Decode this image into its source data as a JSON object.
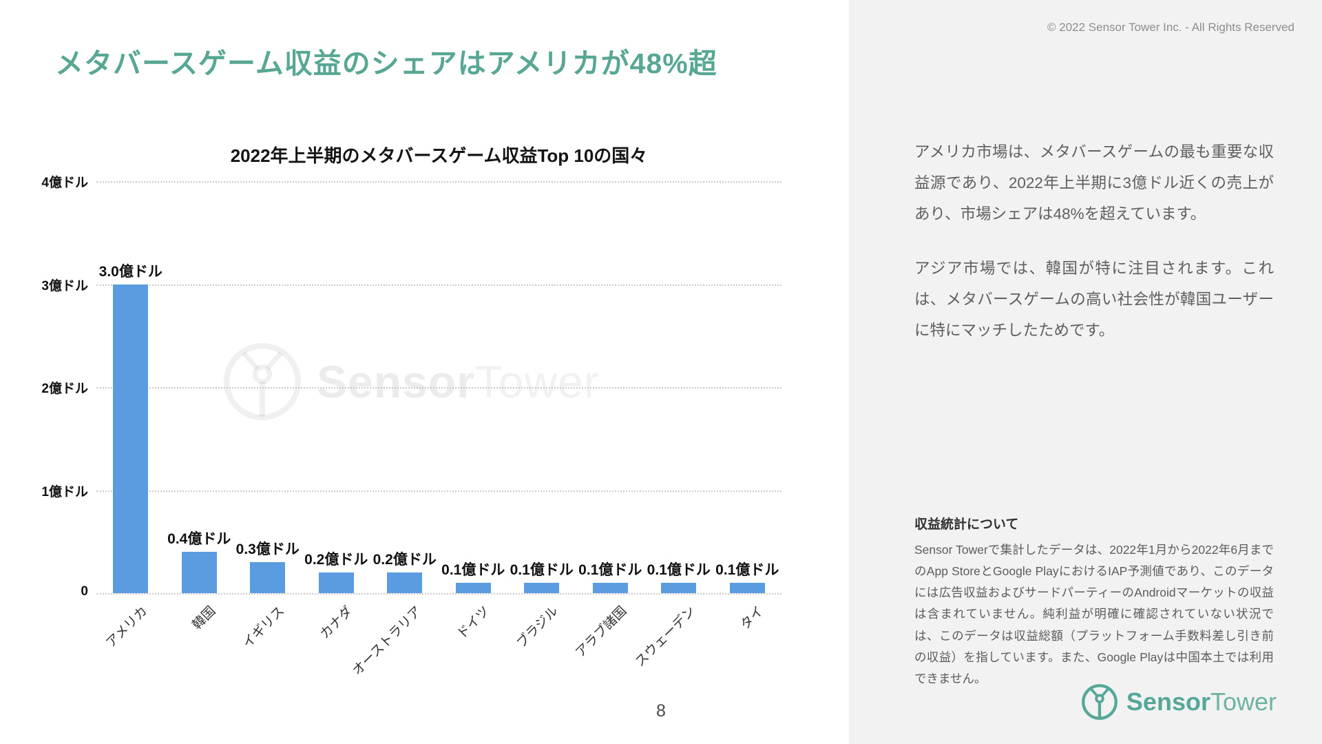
{
  "page": {
    "number": "8",
    "copyright": "© 2022 Sensor Tower Inc. - All Rights Reserved"
  },
  "slide_title": "メタバースゲーム収益のシェアはアメリカが48%超",
  "chart_data": {
    "type": "bar",
    "title": "2022年上半期のメタバースゲーム収益Top 10の国々",
    "categories": [
      "アメリカ",
      "韓国",
      "イギリス",
      "カナダ",
      "オーストラリア",
      "ドイツ",
      "ブラジル",
      "アラブ諸国",
      "スウェーデン",
      "タイ"
    ],
    "values": [
      3.0,
      0.4,
      0.3,
      0.2,
      0.2,
      0.1,
      0.1,
      0.1,
      0.1,
      0.1
    ],
    "value_labels": [
      "3.0億ドル",
      "0.4億ドル",
      "0.3億ドル",
      "0.2億ドル",
      "0.2億ドル",
      "0.1億ドル",
      "0.1億ドル",
      "0.1億ドル",
      "0.1億ドル",
      "0.1億ドル"
    ],
    "unit": "億ドル",
    "xlabel": "",
    "ylabel": "",
    "ylim": [
      0,
      4
    ],
    "y_ticks": [
      {
        "value": 4,
        "label": "4億ドル"
      },
      {
        "value": 3,
        "label": "3億ドル"
      },
      {
        "value": 2,
        "label": "2億ドル"
      },
      {
        "value": 1,
        "label": "1億ドル"
      },
      {
        "value": 0,
        "label": "0"
      }
    ],
    "grid": "horizontal-dotted",
    "legend": "none",
    "bar_color": "#5b9ce0"
  },
  "sidebar": {
    "paragraphs": [
      "アメリカ市場は、メタバースゲームの最も重要な収益源であり、2022年上半期に3億ドル近くの売上があり、市場シェアは48%を超えています。",
      "アジア市場では、韓国が特に注目されます。これは、メタバースゲームの高い社会性が韓国ユーザーに特にマッチしたためです。"
    ],
    "notes": {
      "heading": "収益統計について",
      "body": "Sensor Towerで集計したデータは、2022年1月から2022年6月までのApp StoreとGoogle PlayにおけるIAP予測値であり、このデータには広告収益およびサードパーティーのAndroidマーケットの収益は含まれていません。純利益が明確に確認されていない状況では、このデータは収益総額（プラットフォーム手数料差し引き前の収益）を指しています。また、Google Playは中国本土では利用できません。"
    }
  },
  "branding": {
    "accent_teal": "#58a795",
    "logo_text_bold": "Sensor",
    "logo_text_light": "Tower",
    "watermark_bold": "Sensor",
    "watermark_light": "Tower"
  }
}
